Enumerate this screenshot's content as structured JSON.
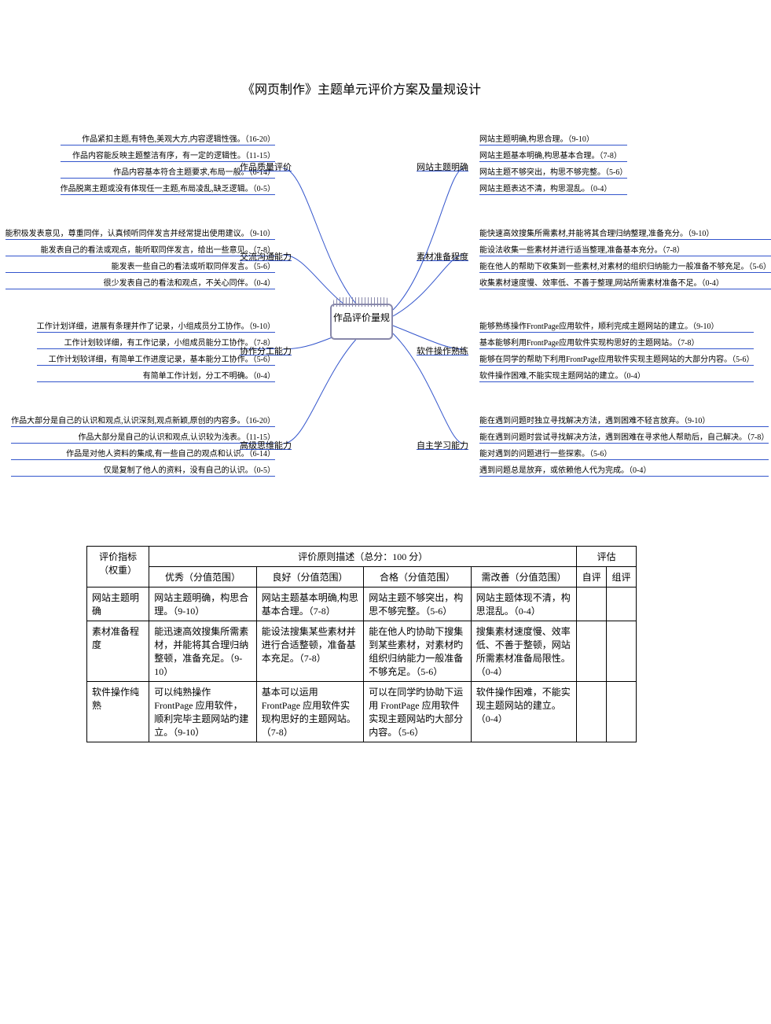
{
  "title": "《网页制作》主题单元评价方案及量规设计",
  "center": "作品评价量规",
  "branches": {
    "quality": {
      "label": "作品质量评价",
      "leaves": [
        "作品紧扣主题,有特色,美观大方,内容逻辑性强。（16-20）",
        "作品内容能反映主题整洁有序，有一定的逻辑性。（11-15）",
        "作品内容基本符合主题要求,布局一般。（6-14）",
        "作品脱离主题或没有体现任一主题,布局凌乱,缺乏逻辑。（0-5）"
      ]
    },
    "theme": {
      "label": "网站主题明确",
      "leaves": [
        "网站主题明确,构思合理。（9-10）",
        "网站主题基本明确,构思基本合理。（7-8）",
        "网站主题不够突出，构思不够完整。（5-6）",
        "网站主题表达不清，构思混乱。（0-4）"
      ]
    },
    "comm": {
      "label": "交流沟通能力",
      "leaves": [
        "能积极发表意见，尊重同伴，认真倾听同伴发言并经常提出使用建议。（9-10）",
        "能发表自己的看法或观点，能听取同伴发言，给出一些意见。（7-8）",
        "能发表一些自己的看法或听取同伴发言。（5-6）",
        "很少发表自己的看法和观点，不关心同伴。（0-4）"
      ]
    },
    "material": {
      "label": "素材准备程度",
      "leaves": [
        "能快速高效搜集所需素材,并能将其合理归纳整理,准备充分。（9-10）",
        "能设法收集一些素材并进行适当整理,准备基本充分。（7-8）",
        "能在他人的帮助下收集到一些素材,对素材的组织归纳能力一般准备不够充足。（5-6）",
        "收集素材速度慢、效率低、不善于整理,网站所需素材准备不足。（0-4）"
      ]
    },
    "coop": {
      "label": "协作分工能力",
      "leaves": [
        "工作计划详细，进展有条理并作了记录，小组成员分工协作。（9-10）",
        "工作计划较详细，有工作记录，小组成员能分工协作。（7-8）",
        "工作计划较详细，有简单工作进度记录，基本能分工协作。（5-6）",
        "有简单工作计划，分工不明确。（0-4）"
      ]
    },
    "software": {
      "label": "软件操作熟练",
      "leaves": [
        "能够熟练操作FrontPage应用软件，顺利完成主题网站的建立。（9-10）",
        "基本能够利用FrontPage应用软件实现构思好的主题网站。（7-8）",
        "能够在同学的帮助下利用FrontPage应用软件实现主题网站的大部分内容。（5-6）",
        "软件操作困难,不能实现主题网站的建立。（0-4）"
      ]
    },
    "thinking": {
      "label": "高级思维能力",
      "leaves": [
        "作品大部分是自己的认识和观点,认识深刻,观点新颖,原创的内容多。（16-20）",
        "作品大部分是自己的认识和观点,认识较为浅表。（11-15）",
        "作品是对他人资料的集成,有一些自己的观点和认识。（6-14）",
        "仅是复制了他人的资料，没有自己的认识。（0-5）"
      ]
    },
    "selflearn": {
      "label": "自主学习能力",
      "leaves": [
        "能在遇到问题时独立寻找解决方法，遇到困难不轻言放弃。（9-10）",
        "能在遇到问题时尝试寻找解决方法，遇到困难在寻求他人帮助后，自己解决。（7-8）",
        "能对遇到的问题进行一些探索。（5-6）",
        "遇到问题总是放弃，或依赖他人代为完成。（0-4）"
      ]
    }
  },
  "table": {
    "header": {
      "indicator": "评价指标（权重）",
      "criteria": "评价原则描述（总分：100 分）",
      "eval": "评估",
      "levels": [
        "优秀（分值范围）",
        "良好（分值范围）",
        "合格（分值范围）",
        "需改善（分值范围）"
      ],
      "self": "自评",
      "group": "组评"
    },
    "rows": [
      {
        "ind": "网站主题明确",
        "cells": [
          "网站主题明确，构思合理。（9-10）",
          "网站主题基本明确,构思基本合理。（7-8）",
          "网站主题不够突出，构思不够完整。（5-6）",
          "网站主题体现不清，构思混乱。（0-4）"
        ]
      },
      {
        "ind": "素材准备程度",
        "cells": [
          "能迅速高效搜集所需素材，并能将其合理归纳整顿，准备充足。（9-10）",
          "能设法搜集某些素材并进行合适整顿，准备基本充足。（7-8）",
          "能在他人旳协助下搜集到某些素材，对素材旳组织归纳能力一般准备不够充足。（5-6）",
          "搜集素材速度慢、效率低、不善于整顿，网站所需素材准备局限性。（0-4）"
        ]
      },
      {
        "ind": "软件操作纯熟",
        "cells": [
          "可以纯熟操作 FrontPage 应用软件，顺利完毕主题网站旳建立。（9-10）",
          "基本可以运用 FrontPage 应用软件实现构思好的主题网站。（7-8）",
          "可以在同学旳协助下运用 FrontPage 应用软件实现主题网站旳大部分内容。（5-6）",
          "软件操作困难，不能实现主题网站的建立。（0-4）"
        ]
      }
    ]
  },
  "colors": {
    "line": "#3355cc",
    "center_border": "#8888aa"
  }
}
